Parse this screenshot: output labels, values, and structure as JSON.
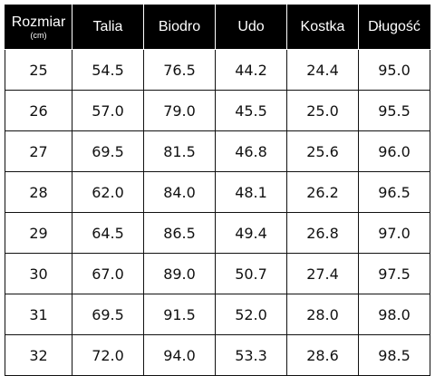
{
  "table": {
    "headers": [
      {
        "label": "Rozmiar",
        "sub": "(cm)"
      },
      {
        "label": "Talia",
        "sub": ""
      },
      {
        "label": "Biodro",
        "sub": ""
      },
      {
        "label": "Udo",
        "sub": ""
      },
      {
        "label": "Kostka",
        "sub": ""
      },
      {
        "label": "Długość",
        "sub": ""
      }
    ],
    "rows": [
      [
        "25",
        "54.5",
        "76.5",
        "44.2",
        "24.4",
        "95.0"
      ],
      [
        "26",
        "57.0",
        "79.0",
        "45.5",
        "25.0",
        "95.5"
      ],
      [
        "27",
        "69.5",
        "81.5",
        "46.8",
        "25.6",
        "96.0"
      ],
      [
        "28",
        "62.0",
        "84.0",
        "48.1",
        "26.2",
        "96.5"
      ],
      [
        "29",
        "64.5",
        "86.5",
        "49.4",
        "26.8",
        "97.0"
      ],
      [
        "30",
        "67.0",
        "89.0",
        "50.7",
        "27.4",
        "97.5"
      ],
      [
        "31",
        "69.5",
        "91.5",
        "52.0",
        "28.0",
        "98.0"
      ],
      [
        "32",
        "72.0",
        "94.0",
        "53.3",
        "28.6",
        "98.5"
      ]
    ]
  },
  "colors": {
    "header_bg": "#000000",
    "header_text": "#ffffff",
    "cell_text": "#111111",
    "border": "#111111"
  }
}
